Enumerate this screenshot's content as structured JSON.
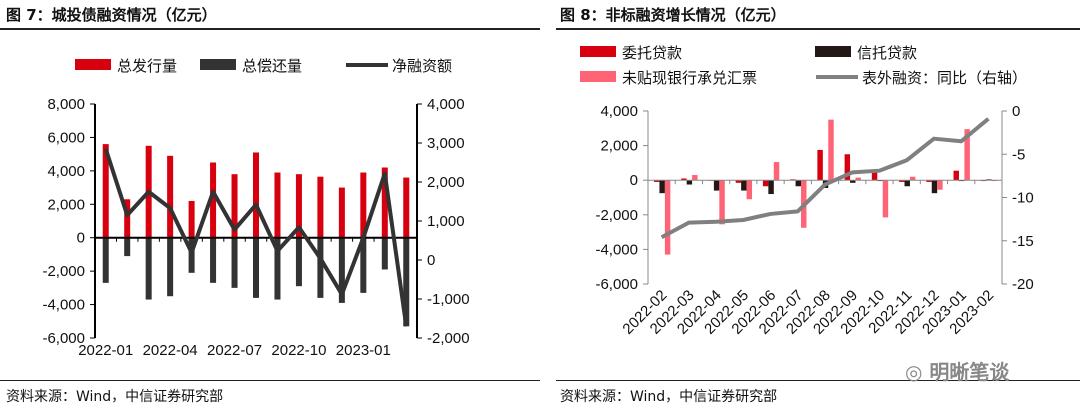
{
  "left": {
    "title": "图 7：城投债融资情况（亿元）",
    "source": "资料来源：Wind，中信证券研究部"
  },
  "right": {
    "title": "图 8：非标融资增长情况（亿元）",
    "source": "资料来源：Wind，中信证券研究部"
  },
  "watermark": "明晰笔谈",
  "chart_data": [
    {
      "type": "bar+line",
      "title": "图 7：城投债融资情况（亿元）",
      "categories": [
        "2022-01",
        "2022-02",
        "2022-03",
        "2022-04",
        "2022-05",
        "2022-06",
        "2022-07",
        "2022-08",
        "2022-09",
        "2022-10",
        "2022-11",
        "2022-12",
        "2023-01",
        "2023-02",
        "2023-03"
      ],
      "tick_labels": [
        "2022-01",
        "2022-04",
        "2022-07",
        "2022-10",
        "2023-01"
      ],
      "ylim": [
        -6000,
        8000
      ],
      "yticks": [
        -6000,
        -4000,
        -2000,
        0,
        2000,
        4000,
        6000,
        8000
      ],
      "y2lim": [
        -2000,
        4000
      ],
      "y2ticks": [
        -2000,
        -1000,
        0,
        1000,
        2000,
        3000,
        4000
      ],
      "legend": "top",
      "series": [
        {
          "name": "总发行量",
          "type": "bar",
          "axis": "left",
          "color": "#d7000f",
          "values": [
            5600,
            2300,
            5500,
            4900,
            2200,
            4500,
            3800,
            5100,
            3900,
            3800,
            3650,
            3000,
            3900,
            4200,
            3600
          ]
        },
        {
          "name": "总偿还量",
          "type": "bar",
          "axis": "left",
          "color": "#333333",
          "values": [
            -2700,
            -1100,
            -3700,
            -3500,
            -2100,
            -2700,
            -3000,
            -3600,
            -3700,
            -2900,
            -3600,
            -3900,
            -3300,
            -1900,
            -5300
          ]
        },
        {
          "name": "净融资额",
          "type": "line",
          "axis": "right",
          "color": "#333333",
          "values": [
            2850,
            1150,
            1750,
            1330,
            190,
            1750,
            780,
            1420,
            230,
            840,
            40,
            -880,
            570,
            2220,
            -1700
          ]
        }
      ]
    },
    {
      "type": "bar+line",
      "title": "图 8：非标融资增长情况（亿元）",
      "categories": [
        "2022-02",
        "2022-03",
        "2022-04",
        "2022-05",
        "2022-06",
        "2022-07",
        "2022-08",
        "2022-09",
        "2022-10",
        "2022-11",
        "2022-12",
        "2023-01",
        "2023-02"
      ],
      "ylim": [
        -6000,
        4000
      ],
      "yticks": [
        -6000,
        -4000,
        -2000,
        0,
        2000,
        4000
      ],
      "y2lim": [
        -20,
        0
      ],
      "y2ticks": [
        -20,
        -15,
        -10,
        -5,
        0
      ],
      "legend": "top",
      "series": [
        {
          "name": "委托贷款",
          "type": "bar",
          "axis": "left",
          "color": "#d7000f",
          "values": [
            -100,
            100,
            -30,
            -150,
            -350,
            50,
            1750,
            1500,
            500,
            -100,
            -100,
            550,
            -50
          ]
        },
        {
          "name": "信托贷款",
          "type": "bar",
          "axis": "left",
          "color": "#231815",
          "values": [
            -750,
            -250,
            -600,
            -600,
            -800,
            -350,
            -450,
            -150,
            -50,
            -350,
            -750,
            -50,
            50
          ]
        },
        {
          "name": "未贴现银行承兑汇票",
          "type": "bar",
          "axis": "left",
          "color": "#ff6376",
          "values": [
            -4300,
            300,
            -2550,
            -1100,
            1050,
            -2750,
            3500,
            150,
            -2150,
            200,
            -550,
            2950,
            -50
          ]
        },
        {
          "name": "表外融资：同比（右轴）",
          "type": "line",
          "axis": "right",
          "color": "#808080",
          "values": [
            -14.6,
            -12.9,
            -12.8,
            -12.6,
            -11.9,
            -11.6,
            -8.5,
            -7.1,
            -6.9,
            -5.7,
            -3.2,
            -3.5,
            -0.9
          ]
        }
      ]
    }
  ]
}
